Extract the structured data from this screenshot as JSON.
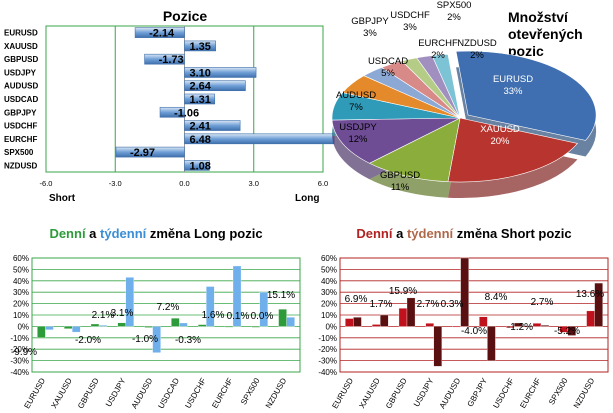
{
  "chart_data": [
    {
      "type": "bar",
      "orientation": "horizontal",
      "title": "Pozice",
      "categories": [
        "EURUSD",
        "XAUUSD",
        "GBPUSD",
        "USDJPY",
        "AUDUSD",
        "USDCAD",
        "GBPJPY",
        "USDCHF",
        "EURCHF",
        "SPX500",
        "NZDUSD"
      ],
      "values": [
        -2.14,
        1.35,
        -1.73,
        3.1,
        2.64,
        1.31,
        -1.06,
        2.41,
        6.48,
        -2.97,
        1.08
      ],
      "value_labels": [
        "-2.14",
        "1.35",
        "-1.73",
        "3.10",
        "2.64",
        "1.31",
        "-1.06",
        "2.41",
        "6.48",
        "-2.97",
        "1.08"
      ],
      "xlim": [
        -6,
        6
      ],
      "xticks": [
        "-6.0",
        "-3.0",
        "0.0",
        "3.0",
        "6.0"
      ],
      "left_label": "Short",
      "right_label": "Long",
      "colors": {
        "bar": "#5b8fc9",
        "bar_light": "#c6d9ef",
        "grid": "#3aa64a",
        "plot_bg": "#ffffff",
        "axis_bg": "#dbe8f4"
      }
    },
    {
      "type": "pie",
      "title": "Množství otevřených pozic",
      "title_lines": [
        "Množství",
        "otevřených",
        "pozic"
      ],
      "slices": [
        {
          "name": "EURUSD",
          "value": 33,
          "label": "33%",
          "color": "#3f6fb0"
        },
        {
          "name": "XAUUSD",
          "value": 20,
          "label": "20%",
          "color": "#b8352f"
        },
        {
          "name": "GBPUSD",
          "value": 11,
          "label": "11%",
          "color": "#8aad3b"
        },
        {
          "name": "USDJPY",
          "value": 12,
          "label": "12%",
          "color": "#6e4d95"
        },
        {
          "name": "AUDUSD",
          "value": 7,
          "label": "7%",
          "color": "#2f9bb8"
        },
        {
          "name": "USDCAD",
          "value": 5,
          "label": "5%",
          "color": "#e58a2b"
        },
        {
          "name": "GBPJPY",
          "value": 3,
          "label": "3%",
          "color": "#8ca9d6"
        },
        {
          "name": "USDCHF",
          "value": 3,
          "label": "3%",
          "color": "#d88a88"
        },
        {
          "name": "EURCHF",
          "value": 2,
          "label": "2%",
          "color": "#b5cc86"
        },
        {
          "name": "NZDUSD",
          "value": 2,
          "label": "2%",
          "color": "#a08fbf"
        },
        {
          "name": "SPX500",
          "value": 2,
          "label": "2%",
          "color": "#7dc3d6"
        }
      ]
    },
    {
      "type": "bar",
      "title_parts": [
        {
          "text": "Denní",
          "color": "#2e9b3a"
        },
        {
          "text": " a ",
          "color": "#000000"
        },
        {
          "text": "týdenní",
          "color": "#3b8ed6"
        },
        {
          "text": " změna Long pozic",
          "color": "#000000"
        }
      ],
      "categories": [
        "EURUSD",
        "XAUUSD",
        "GBPUSD",
        "USDJPY",
        "AUDUSD",
        "USDCAD",
        "USDCHF",
        "EURCHF",
        "SPX500",
        "NZDUSD"
      ],
      "series": [
        {
          "name": "Denní",
          "color": "#2e9b3a",
          "values": [
            -9.9,
            -2.0,
            2.1,
            3.1,
            -1.0,
            7.2,
            1.6,
            0.1,
            0.0,
            15.1
          ]
        },
        {
          "name": "týdenní",
          "color": "#6fb0ec",
          "values": [
            -3,
            -5,
            1,
            43,
            -23,
            3,
            35,
            53,
            30,
            8
          ]
        }
      ],
      "data_labels": [
        "-9.9%",
        "-2.0%",
        "2.1%",
        "3.1%",
        "-1.0%",
        "7.2%",
        "1.6%",
        "0.1%",
        "0.0%",
        "15.1%",
        "-0.3%"
      ],
      "gbpjpy_label": "-0.3%",
      "ylim": [
        -40,
        60
      ],
      "yticks": [
        "60%",
        "50%",
        "40%",
        "30%",
        "20%",
        "10%",
        "0%",
        "-10%",
        "-20%",
        "-30%",
        "-40%"
      ],
      "colors": {
        "grid": "#3aa64a"
      }
    },
    {
      "type": "bar",
      "title_parts": [
        {
          "text": "Denní",
          "color": "#b22222"
        },
        {
          "text": " a ",
          "color": "#000000"
        },
        {
          "text": "týdenní",
          "color": "#b0684a"
        },
        {
          "text": " změna Short pozic",
          "color": "#000000"
        }
      ],
      "categories": [
        "EURUSD",
        "XAUUSD",
        "GBPUSD",
        "USDJPY",
        "AUDUSD",
        "GBPJPY",
        "USDCHF",
        "EURCHF",
        "SPX500",
        "NZDUSD"
      ],
      "series": [
        {
          "name": "Denní",
          "color": "#c0121c",
          "values": [
            6.9,
            1.7,
            15.9,
            2.7,
            0.3,
            8.4,
            -1.2,
            2.7,
            -5.2,
            13.6
          ]
        },
        {
          "name": "týdenní",
          "color": "#5a1010",
          "values": [
            8,
            10,
            25,
            -35,
            60,
            -30,
            3,
            1,
            -8,
            38
          ]
        }
      ],
      "data_labels": [
        "6.9%",
        "1.7%",
        "15.9%",
        "2.7%",
        "0.3%",
        "-4.0%",
        "8.4%",
        "-1.2%",
        "2.7%",
        "-5.2%",
        "13.6%"
      ],
      "usdcad_label": "-4.0%",
      "ylim": [
        -40,
        60
      ],
      "yticks": [
        "60%",
        "50%",
        "40%",
        "30%",
        "20%",
        "10%",
        "0%",
        "-10%",
        "-20%",
        "-30%",
        "-40%"
      ],
      "colors": {
        "grid": "#b22222"
      }
    }
  ]
}
